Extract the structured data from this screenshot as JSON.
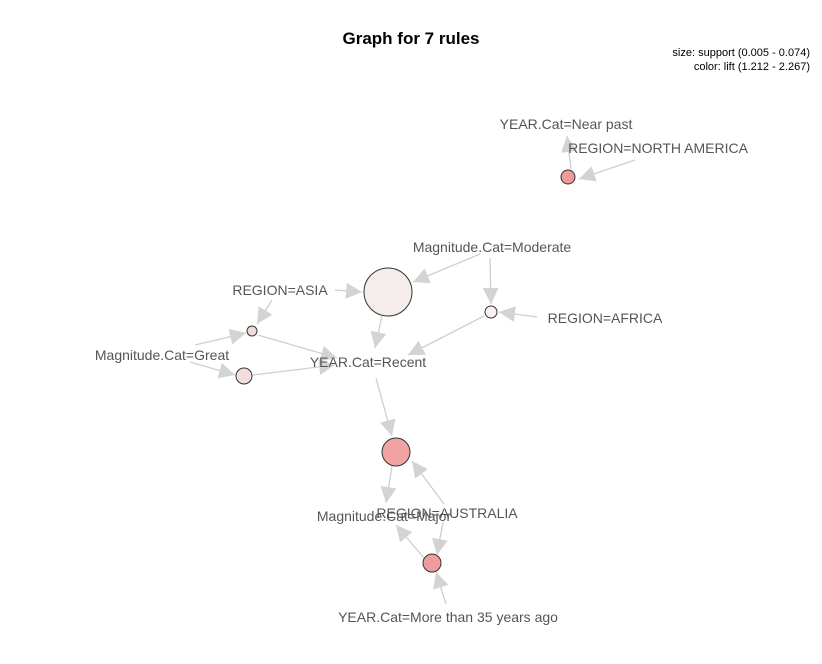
{
  "title": "Graph for 7 rules",
  "legend": {
    "size": "size: support (0.005 - 0.074)",
    "color": "color: lift (1.212 - 2.267)"
  },
  "colors": {
    "edge": "#cfcfcf",
    "arrow": "#d3d3d3",
    "label": "#555555",
    "node_stroke": "#333333"
  },
  "items": [
    {
      "id": "near-past",
      "label": "YEAR.Cat=Near past"
    },
    {
      "id": "north-america",
      "label": "REGION=NORTH AMERICA"
    },
    {
      "id": "moderate",
      "label": "Magnitude.Cat=Moderate"
    },
    {
      "id": "asia",
      "label": "REGION=ASIA"
    },
    {
      "id": "africa",
      "label": "REGION=AFRICA"
    },
    {
      "id": "great",
      "label": "Magnitude.Cat=Great"
    },
    {
      "id": "recent",
      "label": "YEAR.Cat=Recent"
    },
    {
      "id": "australia",
      "label": "REGION=AUSTRALIA"
    },
    {
      "id": "major",
      "label": "Magnitude.Cat=Major"
    },
    {
      "id": "more-35",
      "label": "YEAR.Cat=More than 35 years ago"
    }
  ],
  "rules": [
    {
      "id": "r1",
      "fill": "#ef9a9a",
      "lhs": [
        "north-america"
      ],
      "rhs": "near-past"
    },
    {
      "id": "r2",
      "fill": "#f5ecec",
      "lhs": [
        "moderate",
        "asia"
      ],
      "rhs": "recent"
    },
    {
      "id": "r3",
      "fill": "#f9f1f1",
      "lhs": [
        "moderate",
        "africa"
      ],
      "rhs": "recent"
    },
    {
      "id": "r4",
      "fill": "#f3dada",
      "lhs": [
        "asia",
        "great"
      ],
      "rhs": "recent"
    },
    {
      "id": "r5",
      "fill": "#f3dede",
      "lhs": [
        "great"
      ],
      "rhs": "recent"
    },
    {
      "id": "r6",
      "fill": "#f1a3a3",
      "lhs": [
        "recent",
        "australia"
      ],
      "rhs": "major"
    },
    {
      "id": "r7",
      "fill": "#ef9c9c",
      "lhs": [
        "australia",
        "more-35"
      ],
      "rhs": "major"
    }
  ]
}
